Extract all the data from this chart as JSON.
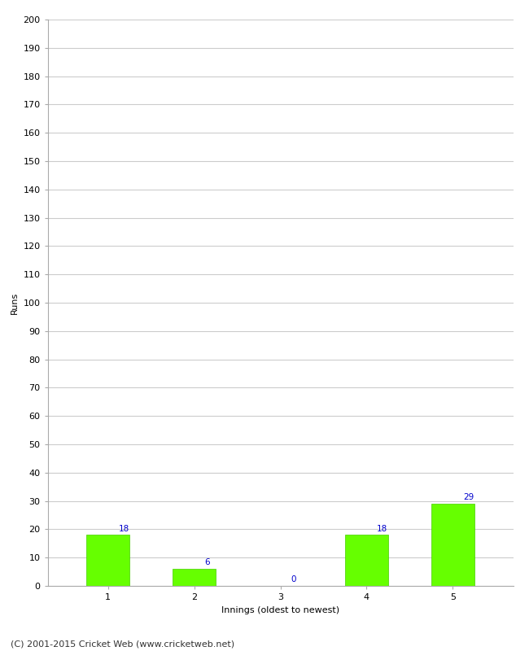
{
  "categories": [
    "1",
    "2",
    "3",
    "4",
    "5"
  ],
  "values": [
    18,
    6,
    0,
    18,
    29
  ],
  "bar_color": "#66ff00",
  "bar_edge_color": "#44cc00",
  "ylabel": "Runs",
  "xlabel": "Innings (oldest to newest)",
  "ylim": [
    0,
    200
  ],
  "ytick_step": 10,
  "label_color": "#0000cc",
  "label_fontsize": 7.5,
  "axis_fontsize": 8,
  "tick_fontsize": 8,
  "footer_text": "(C) 2001-2015 Cricket Web (www.cricketweb.net)",
  "footer_fontsize": 8,
  "background_color": "#ffffff",
  "grid_color": "#cccccc",
  "bar_width": 0.5
}
